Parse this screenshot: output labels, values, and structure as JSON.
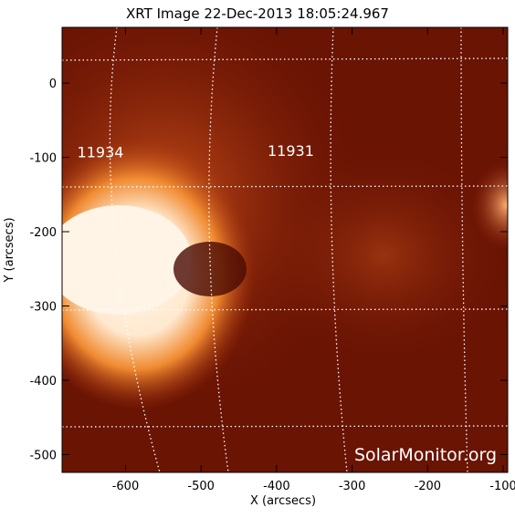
{
  "title": "XRT Image 22-Dec-2013 18:05:24.967",
  "x_axis": {
    "label": "X (arcsecs)",
    "range": [
      -684,
      -94
    ],
    "ticks": [
      -600,
      -500,
      -400,
      -300,
      -200,
      -100
    ]
  },
  "y_axis": {
    "label": "Y (arcsecs)",
    "range": [
      -524,
      75
    ],
    "ticks": [
      0,
      -100,
      -200,
      -300,
      -400,
      -500
    ]
  },
  "regions": [
    {
      "label": "11934",
      "x": -664,
      "y": -100
    },
    {
      "label": "11931",
      "x": -412,
      "y": -98
    }
  ],
  "watermark": "SolarMonitor.org"
}
